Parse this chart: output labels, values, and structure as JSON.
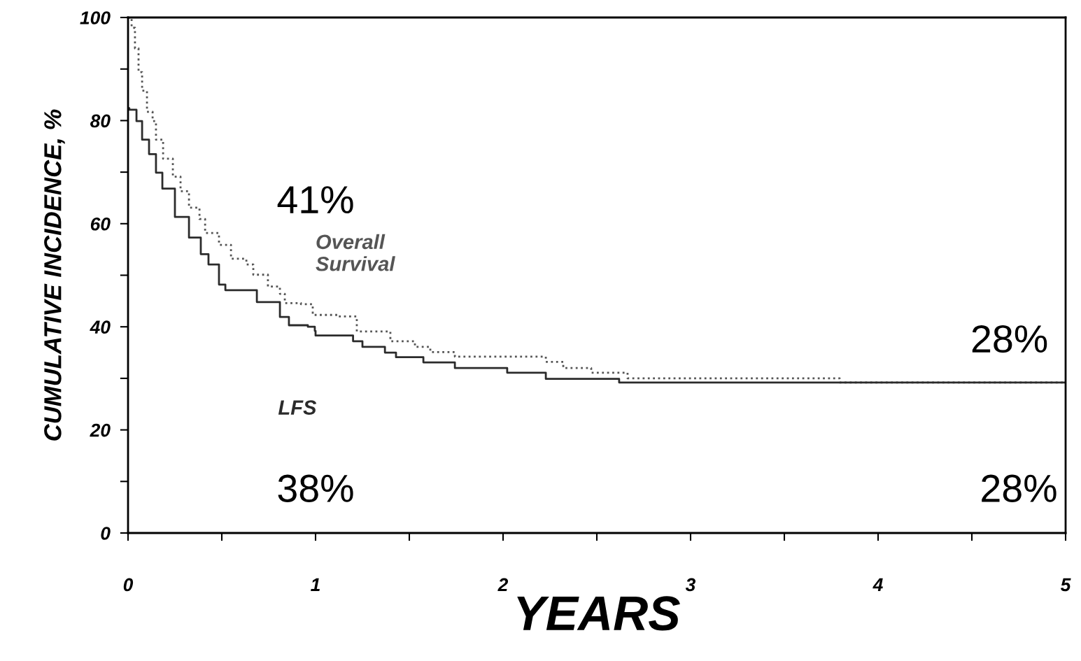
{
  "chart_data": {
    "type": "step",
    "xlabel": "YEARS",
    "ylabel": "CUMULATIVE INCIDENCE, %",
    "xlim": [
      0,
      5
    ],
    "ylim": [
      0,
      100
    ],
    "xticks": [
      0,
      {
        "value": 0.5,
        "label": null
      },
      1,
      {
        "value": 1.5,
        "label": null
      },
      2,
      {
        "value": 2.5,
        "label": null
      },
      3,
      {
        "value": 3.5,
        "label": null
      },
      4,
      {
        "value": 4.5,
        "label": null
      },
      5
    ],
    "yticks": [
      0,
      {
        "value": 10,
        "label": null
      },
      20,
      {
        "value": 30,
        "label": null
      },
      40,
      {
        "value": 50,
        "label": null
      },
      60,
      {
        "value": 70,
        "label": null
      },
      80,
      {
        "value": 90,
        "label": null
      },
      100
    ],
    "grid": false,
    "legend": false,
    "series": [
      {
        "name": "Overall\nSurvival",
        "color": "#555555",
        "line_style": "dotted",
        "x": [
          0,
          0.019,
          0.037,
          0.056,
          0.075,
          0.101,
          0.131,
          0.149,
          0.187,
          0.239,
          0.28,
          0.325,
          0.381,
          0.411,
          0.485,
          0.549,
          0.631,
          0.668,
          0.746,
          0.81,
          0.836,
          0.922,
          0.985,
          1.119,
          1.22,
          1.399,
          1.53,
          1.612,
          1.743,
          2.228,
          2.321,
          2.47,
          2.664,
          3.795,
          5
        ],
        "values": [
          100,
          98,
          94,
          89.4,
          85.8,
          81.7,
          79.9,
          76.3,
          72.6,
          69.1,
          66.3,
          63.1,
          60.9,
          58.2,
          55.9,
          53.2,
          52.1,
          50.1,
          47.8,
          46.4,
          44.6,
          44.4,
          42.3,
          42.0,
          39.1,
          37.2,
          36.1,
          35.1,
          34.2,
          33.2,
          32,
          31.1,
          30,
          29.2,
          29.2
        ]
      },
      {
        "name": "LFS",
        "color": "#2b2b2b",
        "line_style": "solid",
        "x": [
          0,
          0.007,
          0.045,
          0.075,
          0.112,
          0.149,
          0.183,
          0.25,
          0.325,
          0.388,
          0.429,
          0.485,
          0.519,
          0.612,
          0.687,
          0.81,
          0.858,
          0.959,
          0.996,
          1.0,
          1.153,
          1.2,
          1.25,
          1.37,
          1.429,
          1.575,
          1.743,
          2.022,
          2.228,
          2.619,
          5
        ],
        "values": [
          82.4,
          82.1,
          79.9,
          76.3,
          73.5,
          69.9,
          66.8,
          61.3,
          57.3,
          54.1,
          52.1,
          48.2,
          47.1,
          47.1,
          44.8,
          41.9,
          40.3,
          40.0,
          39.2,
          38.3,
          38.3,
          37.2,
          36.1,
          35,
          34.1,
          33.1,
          32,
          31.1,
          29.9,
          29.2,
          29.2
        ]
      }
    ],
    "annotations": [
      "41%",
      "38%",
      "28%",
      "28%"
    ]
  }
}
